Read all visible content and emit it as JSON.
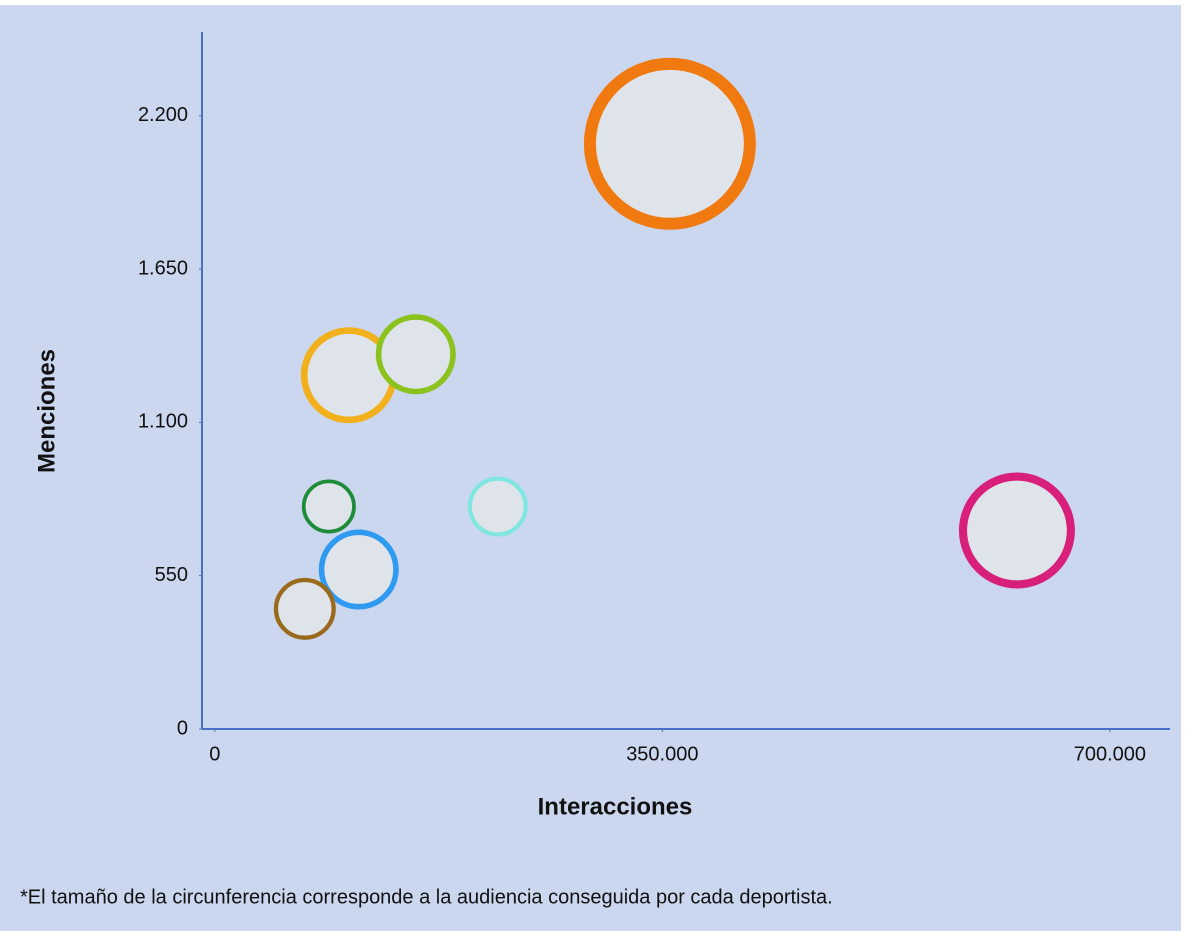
{
  "chart_data": {
    "type": "scatter",
    "xlabel": "Interacciones",
    "ylabel": "Menciones",
    "x": [
      355900,
      104800,
      157200,
      89200,
      221300,
      112600,
      70400,
      627300
    ],
    "y": [
      2099,
      1269,
      1344,
      798,
      798,
      572,
      431,
      712
    ],
    "sizes": [
      86,
      48,
      40,
      27,
      30,
      40,
      31,
      58
    ],
    "colors": [
      "#f07a10",
      "#f2b01c",
      "#8cc21e",
      "#1f8c3a",
      "#7fe6e0",
      "#2f9af0",
      "#9a6a1c",
      "#d81f7a"
    ],
    "xlim": [
      -10000,
      747000
    ],
    "ylim": [
      0,
      2500
    ],
    "xticks": [
      0,
      {
        "value": 350000,
        "label": "350.000"
      },
      {
        "value": 700000,
        "label": "700.000"
      }
    ],
    "yticks": [
      0,
      550,
      {
        "value": 1100,
        "label": "1.100"
      },
      {
        "value": 1650,
        "label": "1.650"
      },
      {
        "value": 2200,
        "label": "2.200"
      }
    ],
    "footnote": "*El tamaño de la circunferencia corresponde a la audiencia conseguida por cada deportista."
  }
}
